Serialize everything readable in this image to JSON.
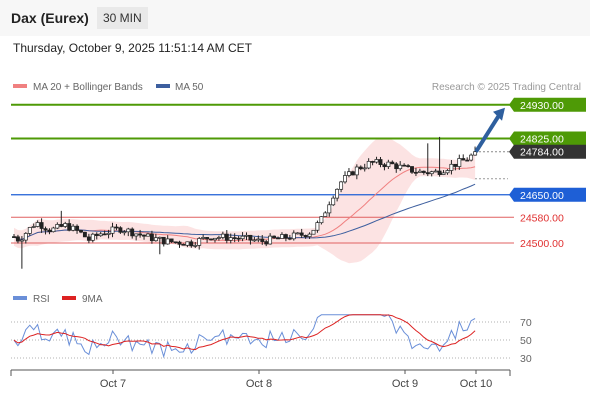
{
  "header": {
    "title": "Dax (Eurex)",
    "timeframe": "30 MIN"
  },
  "datetime": "Thursday, October 9, 2025 11:51:14 AM CET",
  "legend": {
    "bollinger": "MA 20 + Bollinger Bands",
    "ma50": "MA 50",
    "credit": "Research © 2025 Trading Central",
    "rsi": "RSI",
    "rsi_ma": "9MA"
  },
  "colors": {
    "up_candle": "#ffffff",
    "down_candle": "#222222",
    "resistance": "#4e9a06",
    "support_blue": "#1e5fd6",
    "support_red": "#e06060",
    "ma20": "#f08080",
    "band": "#fbd9d9",
    "ma50": "#3d5f9f",
    "arrow": "#2e5f9e",
    "rsi": "#6a8fd8",
    "rsi_ma": "#dd2222"
  },
  "chart_data": {
    "type": "candlestick",
    "y_range": [
      24380,
      24960
    ],
    "x_labels": [
      "Oct 7",
      "Oct 8",
      "Oct 9",
      "Oct 10"
    ],
    "levels": [
      {
        "value": 24930.0,
        "label": "24930.00",
        "style": "resistance"
      },
      {
        "value": 24825.0,
        "label": "24825.00",
        "style": "resistance"
      },
      {
        "value": 24784.0,
        "label": "24784.00",
        "style": "last"
      },
      {
        "value": 24650.0,
        "label": "24650.00",
        "style": "support_blue"
      },
      {
        "value": 24580.0,
        "label": "24580.00",
        "style": "support_red"
      },
      {
        "value": 24500.0,
        "label": "24500.00",
        "style": "support_red"
      }
    ],
    "arrow": {
      "from": 24784,
      "to": 24930
    },
    "rsi": {
      "ticks": [
        70,
        50,
        30
      ],
      "range": [
        15,
        80
      ]
    }
  }
}
